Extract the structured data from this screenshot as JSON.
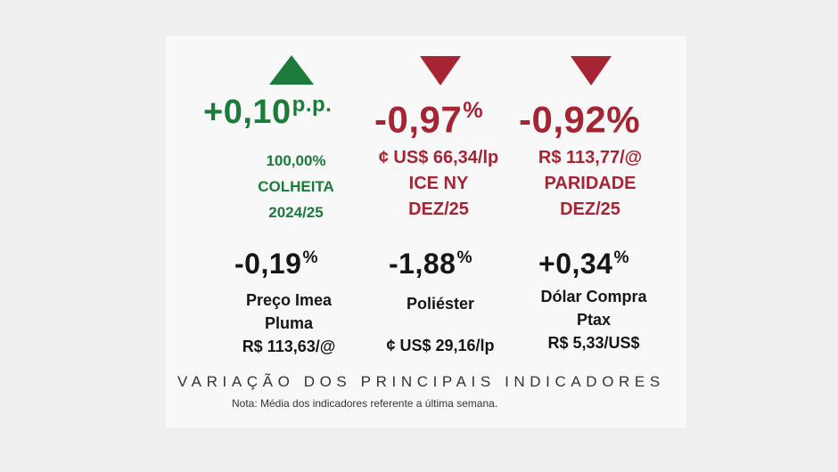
{
  "top_indicators": [
    {
      "direction": "up",
      "value": "+0,10",
      "unit": "p.p.",
      "lines": [
        "100,00%",
        "COLHEITA",
        "2024/25"
      ],
      "color": "#1c7a3a"
    },
    {
      "direction": "down",
      "value": "-0,97",
      "unit": "%",
      "lines": [
        "¢ US$ 66,34/lp",
        "ICE NY",
        "DEZ/25"
      ],
      "color": "#a52535"
    },
    {
      "direction": "down",
      "value": "-0,92%",
      "unit": "",
      "lines": [
        "R$ 113,77/@",
        "PARIDADE",
        "DEZ/25"
      ],
      "color": "#a52535"
    }
  ],
  "bottom_indicators": [
    {
      "value": "-0,19",
      "unit": "%",
      "lines": [
        "Preço Imea",
        "Pluma",
        "R$ 113,63/@"
      ]
    },
    {
      "value": "-1,88",
      "unit": "%",
      "lines": [
        "Poliéster",
        "¢ US$ 29,16/lp"
      ]
    },
    {
      "value": "+0,34",
      "unit": "%",
      "lines": [
        "Dólar Compra",
        "Ptax",
        "R$ 5,33/US$"
      ]
    }
  ],
  "footer": {
    "title": "VARIAÇÃO DOS PRINCIPAIS INDICADORES",
    "note": "Nota: Média dos indicadores referente a última semana."
  }
}
